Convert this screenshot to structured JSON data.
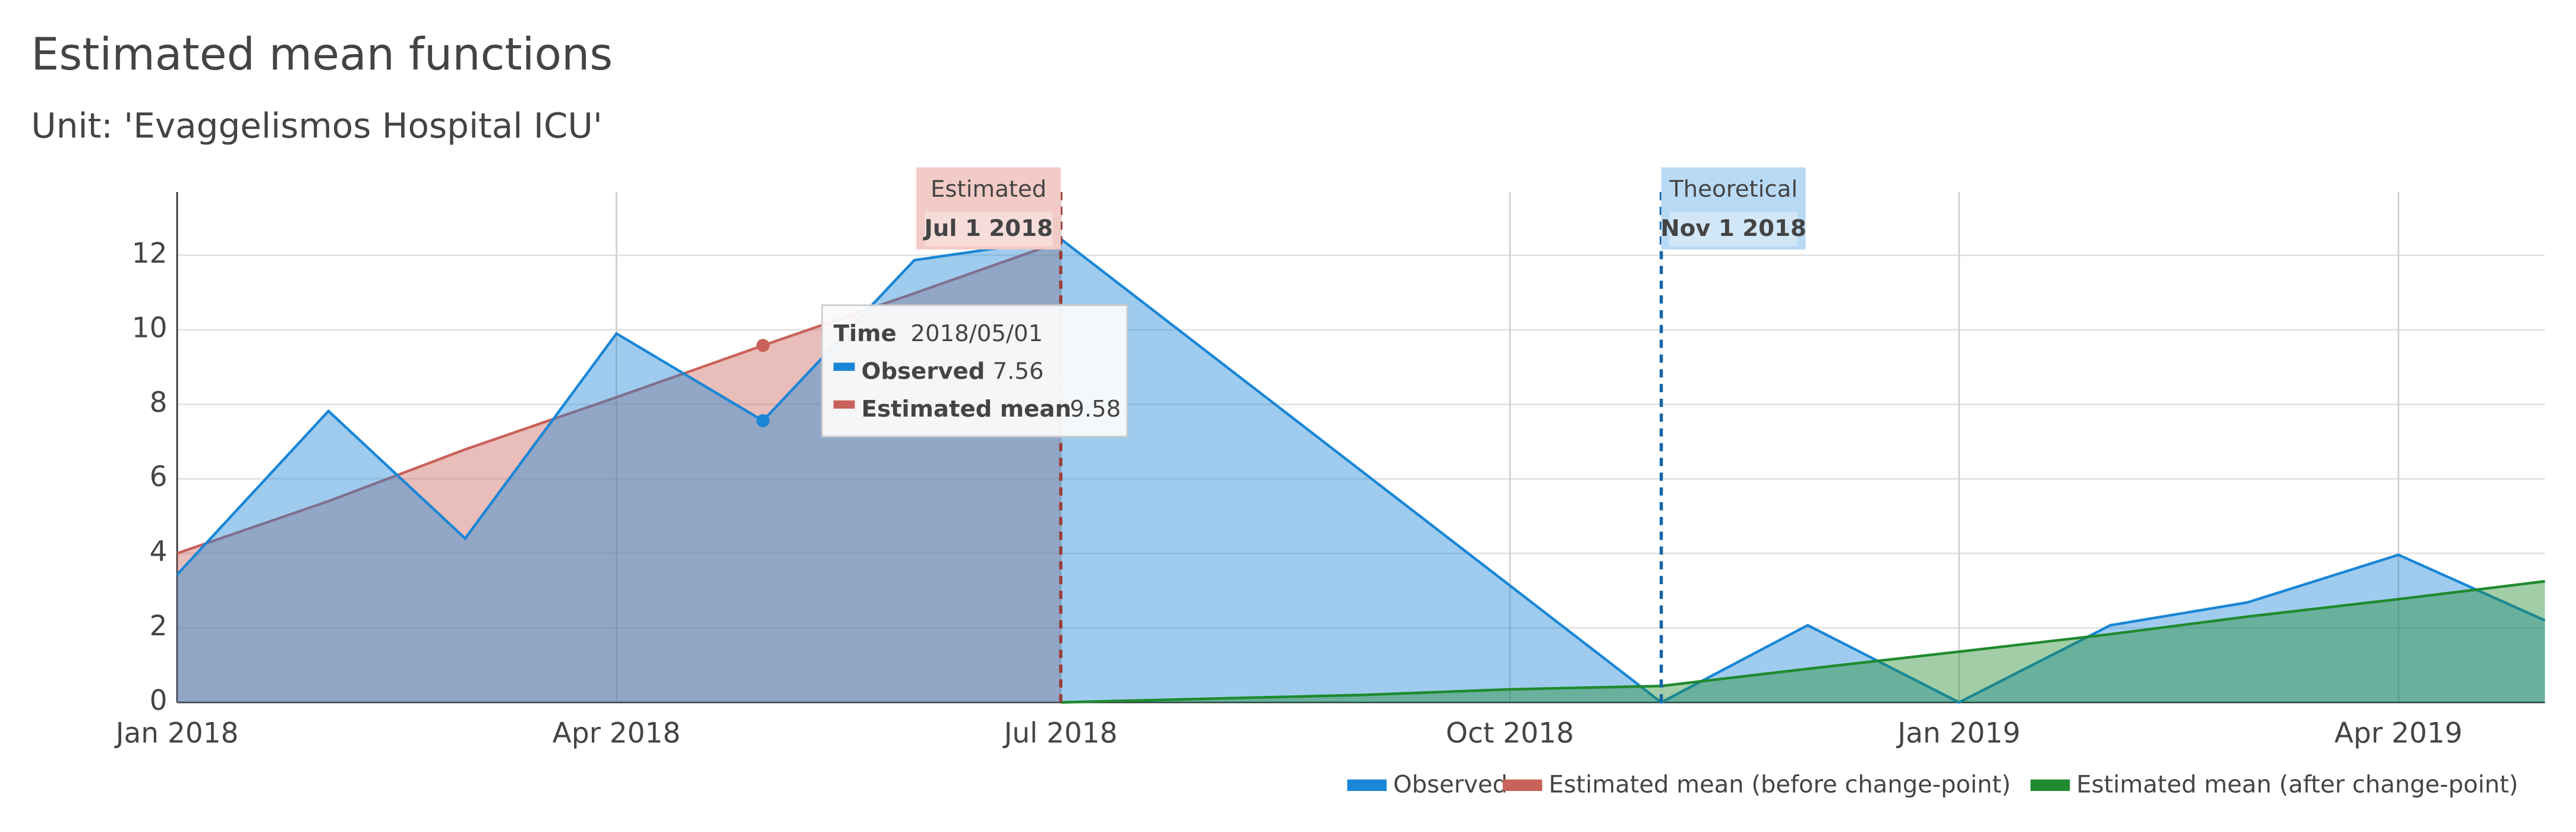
{
  "chart_data": {
    "type": "area",
    "title": "Estimated mean functions",
    "subtitle": "Unit: 'Evaggelismos Hospital ICU'",
    "xlim": [
      "2018/01/01",
      "2019/05/01"
    ],
    "xticks": [
      {
        "value": "2018/01/01",
        "label": "Jan 2018"
      },
      {
        "value": "2018/04/01",
        "label": "Apr 2018"
      },
      {
        "value": "2018/07/01",
        "label": "Jul 2018"
      },
      {
        "value": "2018/10/01",
        "label": "Oct 2018"
      },
      {
        "value": "2019/01/01",
        "label": "Jan 2019"
      },
      {
        "value": "2019/04/01",
        "label": "Apr 2019"
      }
    ],
    "ylim": [
      0,
      13.7
    ],
    "yticks": [
      0,
      2,
      4,
      6,
      8,
      10,
      12
    ],
    "grid": true,
    "legend": "bottom-right",
    "series": [
      {
        "name": "Estimated mean (before change-point)",
        "color": "#c9625a",
        "x": [
          "2018/01/01",
          "2018/02/01",
          "2018/03/01",
          "2018/04/01",
          "2018/05/01",
          "2018/06/01",
          "2018/07/01"
        ],
        "values": [
          4.0,
          5.4,
          6.79,
          8.19,
          9.58,
          10.98,
          12.37
        ]
      },
      {
        "name": "Observed",
        "color": "#1a86d6",
        "x": [
          "2018/01/01",
          "2018/02/01",
          "2018/03/01",
          "2018/04/01",
          "2018/05/01",
          "2018/06/01",
          "2018/07/01",
          "2018/11/01",
          "2018/12/01",
          "2019/01/01",
          "2019/02/01",
          "2019/03/01",
          "2019/04/01",
          "2019/05/01"
        ],
        "values": [
          3.43,
          7.82,
          4.4,
          9.9,
          7.56,
          11.87,
          12.44,
          0,
          2.07,
          0,
          2.07,
          2.68,
          3.96,
          2.2
        ]
      },
      {
        "name": "Estimated mean (after change-point)",
        "color": "#1f8a2e",
        "x": [
          "2018/07/01",
          "2018/08/01",
          "2018/09/01",
          "2018/10/01",
          "2018/11/01",
          "2018/12/01",
          "2019/01/01",
          "2019/02/01",
          "2019/03/01",
          "2019/04/01",
          "2019/05/01"
        ],
        "values": [
          0,
          0.1,
          0.2,
          0.35,
          0.44,
          0.9,
          1.36,
          1.83,
          2.3,
          2.77,
          3.25
        ]
      }
    ],
    "annotations": [
      {
        "label": "Estimated",
        "date_label": "Jul 1 2018",
        "x": "2018/07/01",
        "color": "#9a3f38",
        "background": "#f2cbc6",
        "align": "left"
      },
      {
        "label": "Theoretical",
        "date_label": "Nov 1 2018",
        "x": "2018/11/01",
        "color": "#1565a6",
        "background": "#b9daf5",
        "align": "right"
      }
    ],
    "tooltip": {
      "title": "Time",
      "x": "2018/05/01",
      "labels": [
        "Estimated mean",
        "Observed"
      ]
    }
  }
}
